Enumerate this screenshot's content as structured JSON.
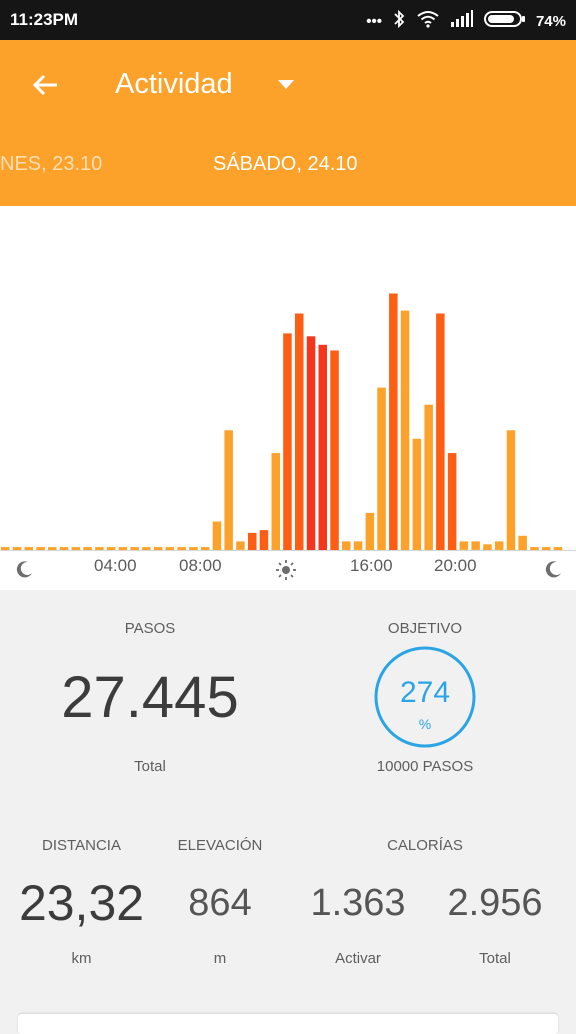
{
  "status": {
    "time": "11:23PM",
    "battery": "74%"
  },
  "header": {
    "title": "Actividad",
    "date_prev": "NES, 23.10",
    "date_current": "SÁBADO, 24.10"
  },
  "colors": {
    "appbar": "#fca22b",
    "bar_light": "#fca22b",
    "bar_medium": "#fd5e14",
    "bar_dark": "#f4361d",
    "ring": "#2ba4e6"
  },
  "axis": {
    "labels": [
      "04:00",
      "08:00",
      "16:00",
      "20:00"
    ],
    "icons": [
      "moon-icon",
      "sun-icon",
      "moon-icon"
    ]
  },
  "chart_data": {
    "type": "bar",
    "xlabel": "",
    "ylabel": "",
    "note": "48 half-hour intervals from 00:00 to 24:00; values are relative heights on a 0-100 scale",
    "ylim": [
      0,
      100
    ],
    "values": [
      1,
      1,
      1,
      1,
      1,
      1,
      1,
      1,
      1,
      1,
      1,
      1,
      1,
      1,
      1,
      1,
      1,
      1,
      10,
      42,
      3,
      6,
      7,
      34,
      76,
      83,
      75,
      72,
      70,
      3,
      3,
      13,
      57,
      90,
      84,
      39,
      51,
      83,
      34,
      3,
      3,
      2,
      3,
      42,
      5,
      1,
      1,
      1
    ],
    "intensity": [
      0,
      0,
      0,
      0,
      0,
      0,
      0,
      0,
      0,
      0,
      0,
      0,
      0,
      0,
      0,
      0,
      0,
      0,
      0,
      0,
      0,
      1,
      1,
      0,
      1,
      1,
      2,
      2,
      1,
      0,
      0,
      0,
      0,
      1,
      0,
      0,
      0,
      1,
      1,
      0,
      0,
      0,
      0,
      0,
      0,
      0,
      0,
      0
    ]
  },
  "stats": {
    "steps": {
      "label": "PASOS",
      "value": "27.445",
      "unit": "Total"
    },
    "goal": {
      "label": "OBJETIVO",
      "value": "274",
      "unit_pct": "%",
      "target": "10000 PASOS",
      "percent": 274
    },
    "distance": {
      "label": "DISTANCIA",
      "value": "23,32",
      "unit": "km"
    },
    "elevation": {
      "label": "ELEVACIÓN",
      "value": "864",
      "unit": "m"
    },
    "calories": {
      "label": "CALORÍAS",
      "active_value": "1.363",
      "active_unit": "Activar",
      "total_value": "2.956",
      "total_unit": "Total"
    }
  }
}
